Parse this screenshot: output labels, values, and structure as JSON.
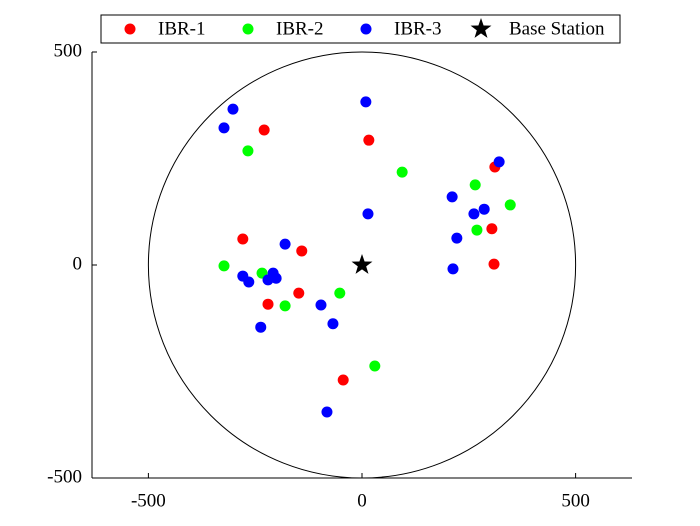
{
  "chart_data": {
    "type": "scatter",
    "xlim": [
      -632,
      632
    ],
    "ylim": [
      -500,
      500
    ],
    "xticks": [
      -500,
      0,
      500
    ],
    "yticks": [
      -500,
      0,
      500
    ],
    "boundary_radius": 500,
    "legend": "top",
    "series": [
      {
        "name": "IBR-1",
        "color": "#ff0000",
        "marker": "circle",
        "x": [
          -229,
          16,
          -279,
          -141,
          -220,
          -148,
          -44,
          311,
          304,
          309
        ],
        "values": [
          317,
          293,
          61,
          33,
          -92,
          -66,
          -270,
          230,
          85,
          2
        ]
      },
      {
        "name": "IBR-2",
        "color": "#00ff00",
        "marker": "circle",
        "x": [
          -267,
          94,
          -323,
          -234,
          -180,
          -52,
          30,
          265,
          347,
          269
        ],
        "values": [
          268,
          218,
          -2,
          -19,
          -96,
          -66,
          -237,
          188,
          141,
          82
        ]
      },
      {
        "name": "IBR-3",
        "color": "#0000ff",
        "marker": "circle",
        "x": [
          -302,
          -323,
          9,
          14,
          -180,
          -279,
          -265,
          -208,
          -201,
          -220,
          -237,
          -96,
          -68,
          -82,
          211,
          321,
          262,
          286,
          222,
          213
        ],
        "values": [
          366,
          322,
          383,
          120,
          49,
          -26,
          -40,
          -19,
          -31,
          -35,
          -146,
          -94,
          -138,
          -345,
          160,
          242,
          120,
          131,
          63,
          -9
        ]
      },
      {
        "name": "Base Station",
        "color": "#000000",
        "marker": "star",
        "x": [
          0
        ],
        "values": [
          0
        ]
      }
    ]
  }
}
